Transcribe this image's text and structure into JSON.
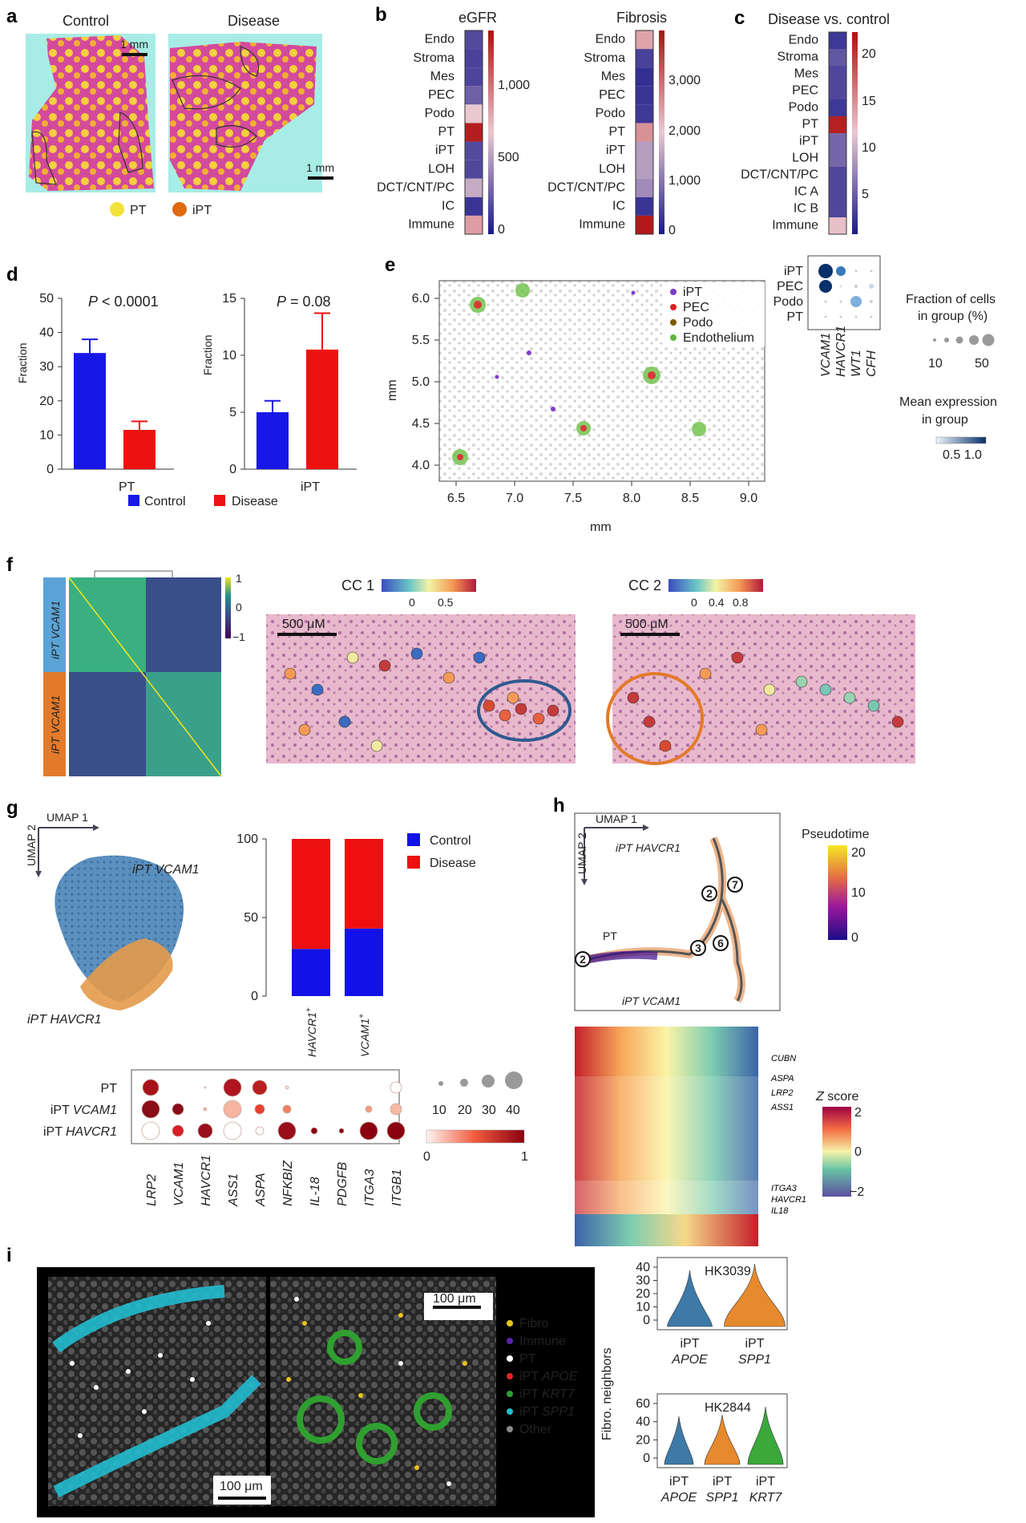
{
  "panel_labels": [
    "a",
    "b",
    "c",
    "d",
    "e",
    "f",
    "g",
    "h",
    "i"
  ],
  "a": {
    "titles": [
      "Control",
      "Disease"
    ],
    "scalebar_labels": [
      "1 mm",
      "1 mm"
    ],
    "legend": [
      {
        "label": "PT",
        "color": "#f2e33a"
      },
      {
        "label": "iPT",
        "color": "#e06a10"
      }
    ]
  },
  "b": {
    "heatmaps": [
      {
        "title": "eGFR",
        "categories": [
          "Endo",
          "Stroma",
          "Mes",
          "PEC",
          "Podo",
          "PT",
          "iPT",
          "LOH",
          "DCT/CNT/PC",
          "IC",
          "Immune"
        ],
        "values": [
          180,
          150,
          160,
          260,
          650,
          1250,
          180,
          170,
          540,
          100,
          800
        ],
        "colorbar_ticks": [
          "1,000",
          "500",
          "0"
        ],
        "range": [
          0,
          1300
        ]
      },
      {
        "title": "Fibrosis",
        "categories": [
          "Endo",
          "Stroma",
          "Mes",
          "PEC",
          "Podo",
          "PT",
          "iPT",
          "LOH",
          "DCT/CNT/PC",
          "IC",
          "Immune"
        ],
        "values": [
          2400,
          450,
          250,
          300,
          350,
          2600,
          1500,
          1500,
          1300,
          300,
          3900
        ],
        "colorbar_ticks": [
          "3,000",
          "2,000",
          "1,000",
          "0"
        ],
        "range": [
          0,
          4000
        ]
      }
    ]
  },
  "c": {
    "title": "Disease vs. control",
    "categories": [
      "Endo",
      "Stroma",
      "Mes",
      "PEC",
      "Podo",
      "PT",
      "iPT",
      "LOH",
      "DCT/CNT/PC",
      "IC A",
      "IC B",
      "Immune"
    ],
    "values": [
      2,
      4,
      3,
      3,
      2,
      22,
      5,
      5,
      3,
      3,
      3,
      12
    ],
    "colorbar_ticks": [
      "20",
      "15",
      "10",
      "5"
    ],
    "range": [
      0,
      23
    ]
  },
  "d": {
    "legend": [
      {
        "label": "Control",
        "color": "#1818e6"
      },
      {
        "label": "Disease",
        "color": "#ee1111"
      }
    ],
    "ylabel": "Fraction"
  },
  "chart_data": [
    {
      "type": "bar",
      "title": "P < 0.0001",
      "categories": [
        "Control",
        "Disease"
      ],
      "values": [
        34,
        11.5
      ],
      "errors": [
        4,
        2.5
      ],
      "xlabel": "PT",
      "ylabel": "Fraction",
      "ylim": [
        0,
        50
      ],
      "yticks": [
        "0",
        "10",
        "20",
        "30",
        "40",
        "50"
      ]
    },
    {
      "type": "bar",
      "title": "P = 0.08",
      "categories": [
        "Control",
        "Disease"
      ],
      "values": [
        5,
        10.5
      ],
      "errors": [
        1,
        3.2
      ],
      "xlabel": "iPT",
      "ylabel": "Fraction",
      "ylim": [
        0,
        15
      ],
      "yticks": [
        "0",
        "5",
        "10",
        "15"
      ]
    },
    {
      "type": "bar",
      "stacked": true,
      "categories": [
        "HAVCR1+",
        "VCAM1+"
      ],
      "series": [
        {
          "name": "Control",
          "values": [
            30,
            43
          ]
        },
        {
          "name": "Disease",
          "values": [
            70,
            57
          ]
        }
      ],
      "ylim": [
        0,
        100
      ],
      "yticks": [
        "0",
        "50",
        "100"
      ]
    }
  ],
  "e": {
    "xticks": [
      "6.5",
      "7.0",
      "7.5",
      "8.0",
      "8.5",
      "9.0"
    ],
    "yticks": [
      "6.0",
      "5.5",
      "5.0",
      "4.5",
      "4.0"
    ],
    "xlabel": "mm",
    "ylabel": "mm",
    "legend": [
      {
        "label": "iPT",
        "color": "#7b3fc4"
      },
      {
        "label": "PEC",
        "color": "#e02020"
      },
      {
        "label": "Podo",
        "color": "#7a5a00"
      },
      {
        "label": "Endothelium",
        "color": "#5cb83a"
      }
    ],
    "dotplot_rows": [
      "iPT",
      "PEC",
      "Podo",
      "PT"
    ],
    "dotplot_cols": [
      "VCAM1",
      "HAVCR1",
      "WT1",
      "CFH"
    ],
    "size_title_1": "Fraction of cells",
    "size_title_2": "in group (%)",
    "size_ticks": [
      "10",
      "50"
    ],
    "expr_title_1": "Mean expression",
    "expr_title_2": "in group",
    "expr_ticks": "0.5 1.0"
  },
  "f": {
    "corr_ticks": [
      "1",
      "0",
      "−1"
    ],
    "row_labels": [
      "iPT VCAM1",
      "iPT VCAM1"
    ],
    "cc1_title": "CC 1",
    "cc1_ticks": [
      "0",
      "0.5"
    ],
    "cc2_title": "CC 2",
    "cc2_ticks": [
      "0",
      "0.4",
      "0.8"
    ],
    "scalebar": "500 μM"
  },
  "g": {
    "umap_x": "UMAP 1",
    "umap_y": "UMAP 2",
    "label_vcam": "iPT VCAM1",
    "label_havcr": "iPT HAVCR1",
    "legend": [
      {
        "label": "Control",
        "color": "#1212e8"
      },
      {
        "label": "Disease",
        "color": "#ee1010"
      }
    ],
    "bar_labels": [
      "HAVCR1",
      "VCAM1"
    ],
    "dot_rows": [
      "PT",
      "iPT VCAM1",
      "iPT HAVCR1"
    ],
    "dot_cols": [
      "LRP2",
      "VCAM1",
      "HAVCR1",
      "ASS1",
      "ASPA",
      "NFKBIZ",
      "IL-18",
      "PDGFB",
      "ITGA3",
      "ITGB1"
    ],
    "size_ticks": [
      "10",
      "20",
      "30",
      "40"
    ],
    "color_ticks": [
      "0",
      "1"
    ]
  },
  "h": {
    "umap_x": "UMAP 1",
    "umap_y": "UMAP 2",
    "label_havcr": "iPT HAVCR1",
    "label_pt": "PT",
    "label_vcam": "iPT VCAM1",
    "pseudotime_title": "Pseudotime",
    "pseudotime_ticks": [
      "20",
      "10",
      "0"
    ],
    "nodes": [
      "2",
      "7",
      "3",
      "6",
      "2"
    ],
    "genes": [
      "CUBN",
      "ASPA",
      "LRP2",
      "ASS1",
      "ITGA3",
      "HAVCR1",
      "IL18"
    ],
    "zscore_title": "Z score",
    "zscore_ticks": [
      "2",
      "0",
      "−2"
    ]
  },
  "i": {
    "scalebar_left": "100 μm",
    "scalebar_right": "100 μm",
    "legend": [
      {
        "label": "Fibro",
        "color": "#e8c51a"
      },
      {
        "label": "Immune",
        "color": "#5b21a8"
      },
      {
        "label": "PT",
        "color": "#ffffff"
      },
      {
        "label": "iPT APOE",
        "color": "#e02424"
      },
      {
        "label": "iPT KRT7",
        "color": "#2fa02f"
      },
      {
        "label": "iPT SPP1",
        "color": "#22bcd0"
      },
      {
        "label": "Other",
        "color": "#8a8a8a"
      }
    ],
    "violin1_title": "HK3039",
    "violin1_yticks": [
      "40",
      "30",
      "20",
      "10",
      "0"
    ],
    "violin1_groups": [
      [
        "iPT",
        "APOE"
      ],
      [
        "iPT",
        "SPP1"
      ]
    ],
    "violin2_title": "HK2844",
    "violin2_yticks": [
      "60",
      "40",
      "20",
      "0"
    ],
    "violin2_groups": [
      [
        "iPT",
        "APOE"
      ],
      [
        "iPT",
        "SPP1"
      ],
      [
        "iPT",
        "KRT7"
      ]
    ],
    "ylabel": "Fibro. neighbors"
  }
}
